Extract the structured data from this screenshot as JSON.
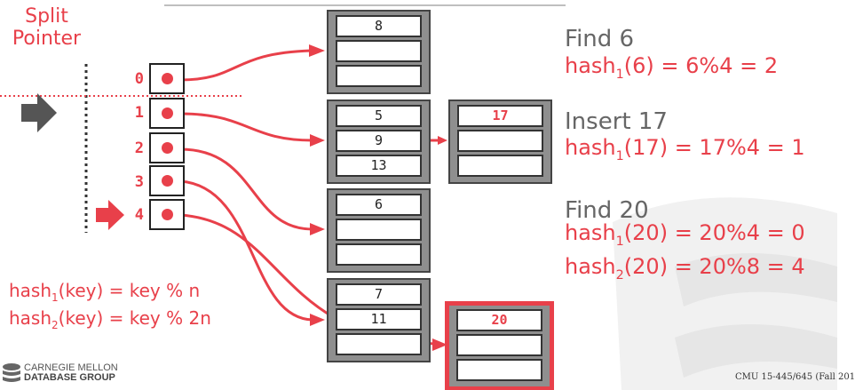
{
  "split_pointer": {
    "title_line1": "Split",
    "title_line2": "Pointer"
  },
  "directory": {
    "slots": [
      "0",
      "1",
      "2",
      "3",
      "4"
    ],
    "current_split_slot": "1"
  },
  "buckets": {
    "b0": {
      "values": [
        "8",
        "",
        ""
      ]
    },
    "b1": {
      "values": [
        "5",
        "9",
        "13"
      ]
    },
    "b1_overflow": {
      "values": [
        "17",
        "",
        ""
      ]
    },
    "b2": {
      "values": [
        "6",
        "",
        ""
      ]
    },
    "b3": {
      "values": [
        "7",
        "11",
        ""
      ]
    },
    "b4_new": {
      "values": [
        "20",
        "",
        ""
      ]
    }
  },
  "operations": [
    {
      "title": "Find 6",
      "lines": [
        {
          "pre": "hash",
          "sub": "1",
          "post": "(6) = 6%4 = 2"
        }
      ]
    },
    {
      "title": "Insert 17",
      "lines": [
        {
          "pre": "hash",
          "sub": "1",
          "post": "(17) = 17%4 = 1"
        }
      ]
    },
    {
      "title": "Find 20",
      "lines": [
        {
          "pre": "hash",
          "sub": "1",
          "post": "(20) = 20%4 = 0"
        },
        {
          "pre": "hash",
          "sub": "2",
          "post": "(20) = 20%8 = 4"
        }
      ]
    }
  ],
  "hash_functions": [
    {
      "pre": "hash",
      "sub": "1",
      "post": "(key) = key % n"
    },
    {
      "pre": "hash",
      "sub": "2",
      "post": "(key) = key % 2n"
    }
  ],
  "logo": {
    "line1": "CARNEGIE MELLON",
    "line2": "DATABASE GROUP"
  },
  "footer": {
    "text": "CMU 15-445/645 (Fall 201"
  },
  "colors": {
    "accent": "#e8404a",
    "bucket_fill": "#8f8f8f",
    "arrow_gray": "#555555"
  }
}
